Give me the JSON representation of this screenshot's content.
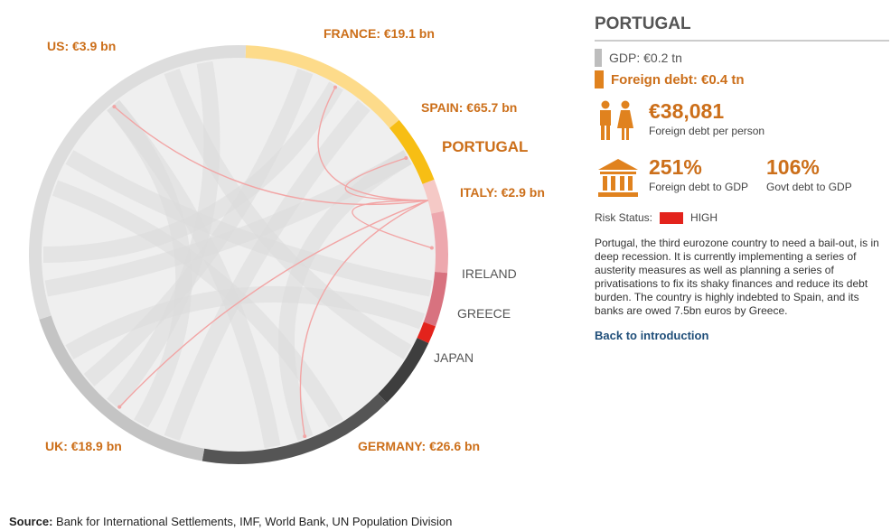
{
  "chord": {
    "countries": [
      {
        "name": "FRANCE",
        "value_label": "€19.1 bn",
        "color": "#fddb8a",
        "highlight": true
      },
      {
        "name": "SPAIN",
        "value_label": "€65.7 bn",
        "color": "#f7be14",
        "highlight": true
      },
      {
        "name": "PORTUGAL",
        "value_label": "",
        "color": "#f5c9c6",
        "highlight": true,
        "selected": true
      },
      {
        "name": "ITALY",
        "value_label": "€2.9 bn",
        "color": "#eda8ae",
        "highlight": true
      },
      {
        "name": "IRELAND",
        "value_label": "",
        "color": "#d8727f",
        "highlight": false
      },
      {
        "name": "GREECE",
        "value_label": "",
        "color": "#e3231c",
        "highlight": false
      },
      {
        "name": "JAPAN",
        "value_label": "",
        "color": "#3e3e3e",
        "highlight": false
      },
      {
        "name": "GERMANY",
        "value_label": "€26.6 bn",
        "color": "#555555",
        "highlight": true
      },
      {
        "name": "UK",
        "value_label": "€18.9 bn",
        "color": "#c4c4c4",
        "highlight": true
      },
      {
        "name": "US",
        "value_label": "€3.9 bn",
        "color": "#dddddd",
        "highlight": true
      }
    ],
    "colors": {
      "highlight_text": "#cc6f1a",
      "plain_text": "#555555",
      "link": "#f2a5a5"
    }
  },
  "panel": {
    "title": "PORTUGAL",
    "gdp_label": "GDP: €0.2 tn",
    "debt_label": "Foreign debt: €0.4 tn",
    "per_person_value": "€38,081",
    "per_person_label": "Foreign debt per person",
    "debt_gdp_value": "251%",
    "debt_gdp_label": "Foreign debt to GDP",
    "govt_gdp_value": "106%",
    "govt_gdp_label": "Govt debt to GDP",
    "risk_label": "Risk Status:",
    "risk_value": "HIGH",
    "risk_color": "#e3231c",
    "description": "Portugal, the third eurozone country to need a bail-out, is in deep recession. It is currently implementing a series of austerity measures as well as planning a series of privatisations to fix its shaky finances and reduce its debt burden. The country is highly indebted to Spain, and its banks are owed 7.5bn euros by Greece.",
    "back_link": "Back to introduction",
    "icons": {
      "people": "people-icon",
      "bank": "bank-icon"
    }
  },
  "source": {
    "label": "Source:",
    "text": "Bank for International Settlements, IMF, World Bank, UN Population Division"
  }
}
